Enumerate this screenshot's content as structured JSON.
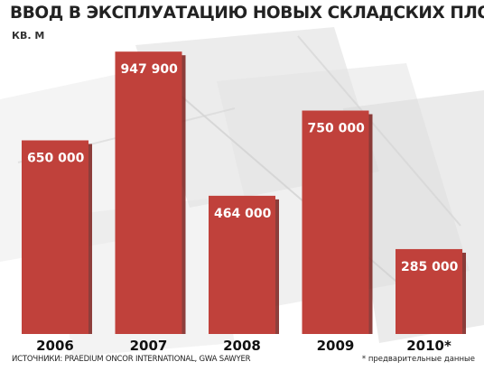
{
  "chart_data": {
    "type": "bar",
    "title": "ВВОД В ЭКСПЛУАТАЦИЮ НОВЫХ СКЛАДСКИХ ПЛОЩАДЕЙ",
    "ylabel": "КВ. М",
    "xlabel": "",
    "categories": [
      "2006",
      "2007",
      "2008",
      "2009",
      "2010*"
    ],
    "values": [
      650000,
      947900,
      464000,
      750000,
      285000
    ],
    "value_labels": [
      "650 000",
      "947 900",
      "464 000",
      "750 000",
      "285 000"
    ],
    "ylim": [
      0,
      1000000
    ],
    "grid": false,
    "legend": "none",
    "colors": {
      "bar": "#c0413b",
      "bar_shadow": "#7a1d1a",
      "label": "#ffffff"
    }
  },
  "source": "ИСТОЧНИКИ: PRAEDIUM ONCOR INTERNATIONAL, GWA SAWYER",
  "footnote": "* предварительные данные"
}
